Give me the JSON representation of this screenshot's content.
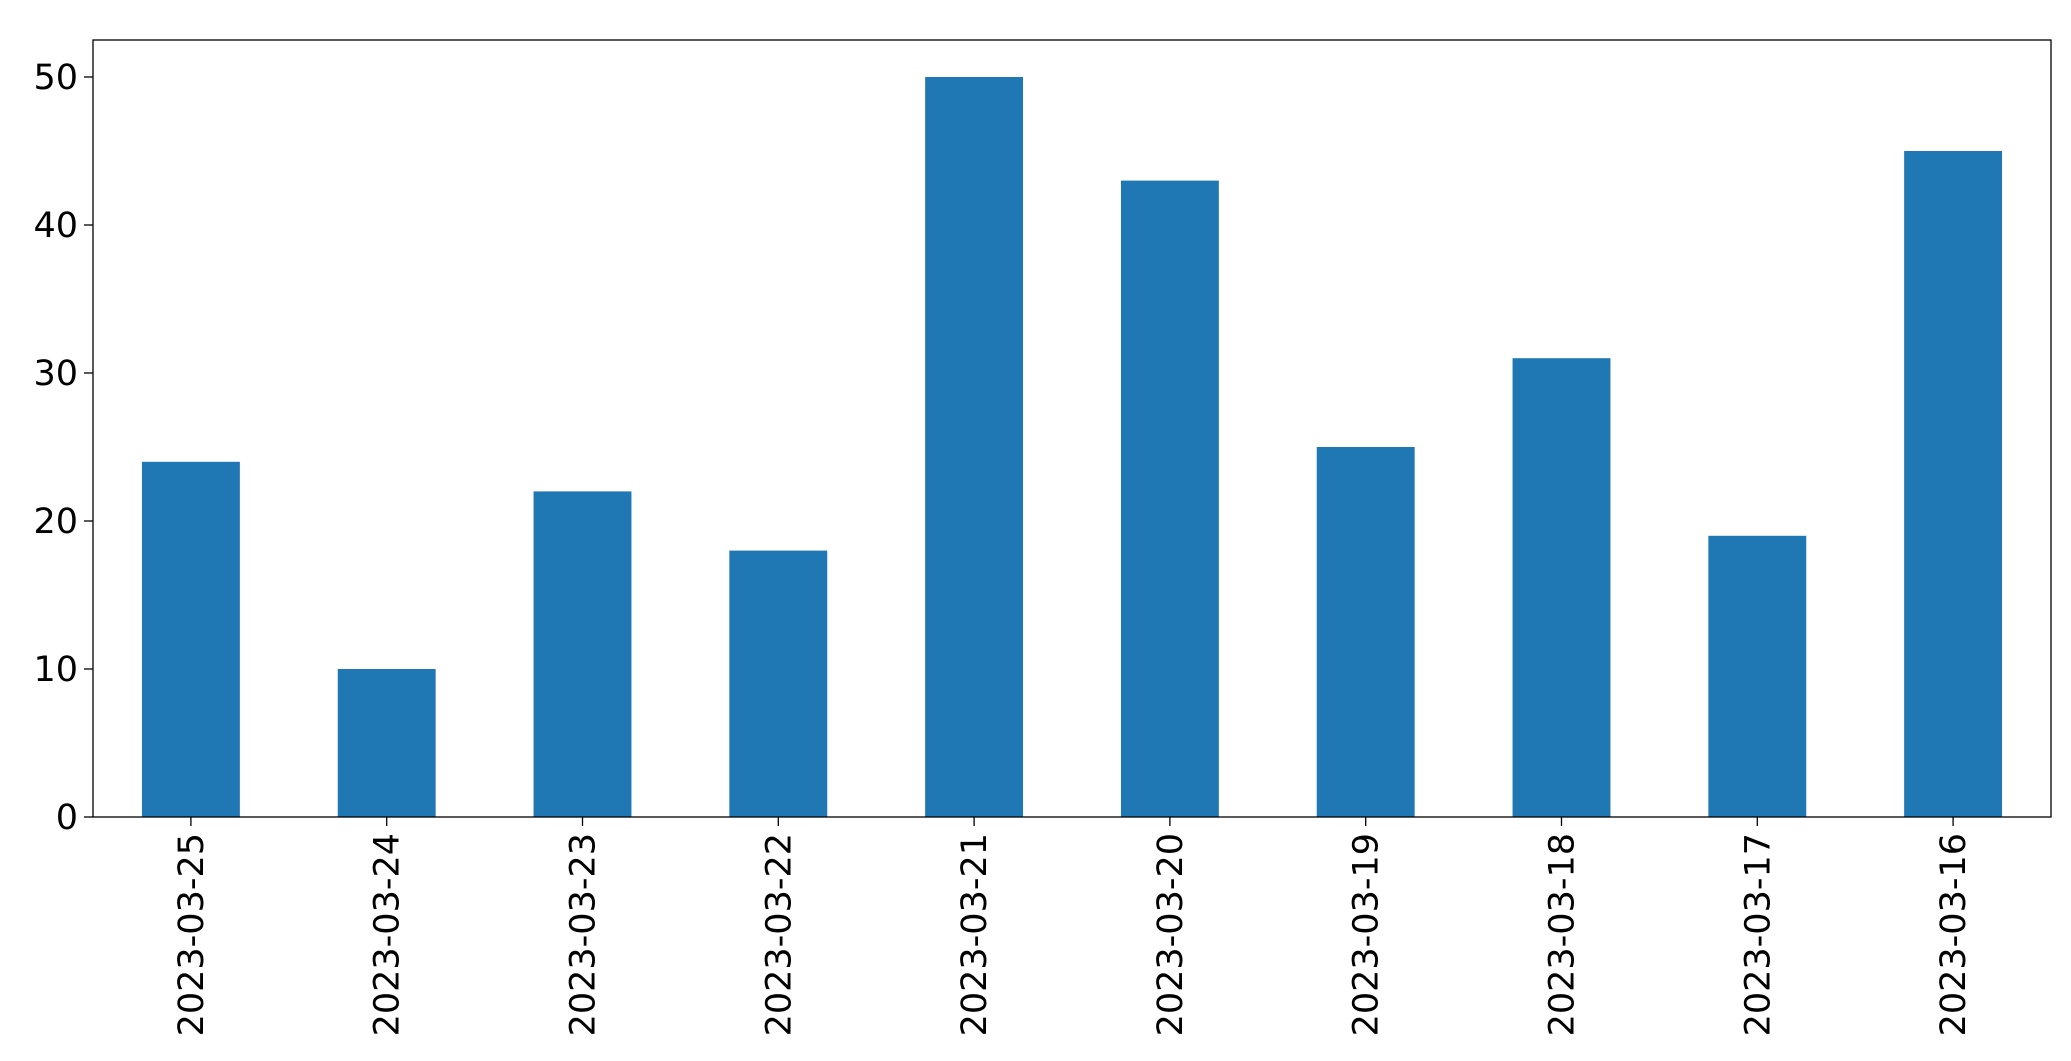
{
  "chart_data": {
    "type": "bar",
    "categories": [
      "2023-03-25",
      "2023-03-24",
      "2023-03-23",
      "2023-03-22",
      "2023-03-21",
      "2023-03-20",
      "2023-03-19",
      "2023-03-18",
      "2023-03-17",
      "2023-03-16"
    ],
    "values": [
      24,
      10,
      22,
      18,
      50,
      43,
      25,
      31,
      19,
      45
    ],
    "color": "#1f77b4",
    "ylim": [
      0,
      52.5
    ],
    "yticks": [
      0,
      10,
      20,
      30,
      40,
      50
    ],
    "grid": false
  }
}
